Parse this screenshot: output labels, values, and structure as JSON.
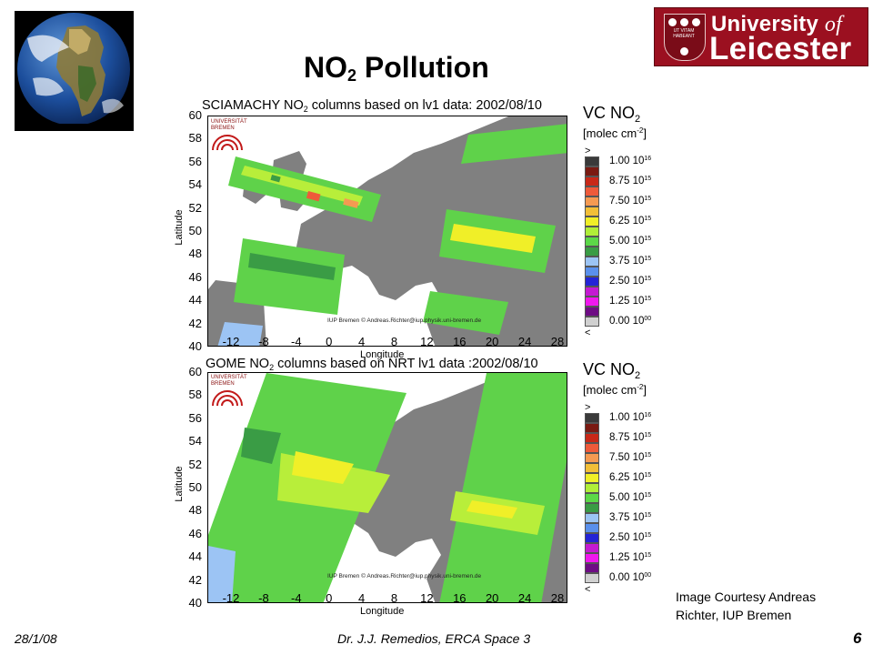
{
  "slide": {
    "title_base": "NO",
    "title_sub": "2",
    "title_tail": " Pollution",
    "page_number": "6"
  },
  "logo": {
    "line1_a": "University ",
    "line1_b": "of",
    "line2": "Leicester",
    "motto": "UT VITAM HABEANT"
  },
  "maps": [
    {
      "title_a": "SCIAMACHY NO",
      "title_sub": "2",
      "title_b": " columns based on lv1 data: 2002/08/10",
      "credit": "IUP Bremen © Andreas.Richter@iup.physik.uni-bremen.de",
      "y_ticks": [
        "60",
        "58",
        "56",
        "54",
        "52",
        "50",
        "48",
        "46",
        "44",
        "42",
        "40"
      ],
      "x_ticks": [
        "-12",
        "-8",
        "-4",
        "0",
        "4",
        "8",
        "12",
        "16",
        "20",
        "24",
        "28"
      ],
      "xlabel": "Longitude",
      "ylabel": "Latitude",
      "institute": [
        "UNIVERSITÄT",
        "BREMEN"
      ]
    },
    {
      "title_a": "GOME NO",
      "title_sub": "2",
      "title_b": " columns based on NRT lv1 data :2002/08/10",
      "credit": "IUP Bremen © Andreas.Richter@iup.physik.uni-bremen.de",
      "y_ticks": [
        "60",
        "58",
        "56",
        "54",
        "52",
        "50",
        "48",
        "46",
        "44",
        "42",
        "40"
      ],
      "x_ticks": [
        "-12",
        "-8",
        "-4",
        "0",
        "4",
        "8",
        "12",
        "16",
        "20",
        "24",
        "28"
      ],
      "xlabel": "Longitude",
      "ylabel": "Latitude",
      "institute": [
        "UNIVERSITÄT",
        "BREMEN"
      ]
    }
  ],
  "legend": {
    "title_a": "VC NO",
    "title_sub": "2",
    "unit_a": "[molec cm",
    "unit_sup": "-2",
    "unit_b": "]",
    "top_symbol": ">",
    "bottom_symbol": "<",
    "labels": [
      {
        "m": "1.00 10",
        "e": "16"
      },
      {
        "m": "8.75 10",
        "e": "15"
      },
      {
        "m": "7.50 10",
        "e": "15"
      },
      {
        "m": "6.25 10",
        "e": "15"
      },
      {
        "m": "5.00 10",
        "e": "15"
      },
      {
        "m": "3.75 10",
        "e": "15"
      },
      {
        "m": "2.50 10",
        "e": "15"
      },
      {
        "m": "1.25 10",
        "e": "15"
      },
      {
        "m": "0.00 10",
        "e": "00"
      }
    ],
    "colors": [
      "#3a3a3a",
      "#7a1a12",
      "#c82818",
      "#ee5a3a",
      "#f59a52",
      "#f2bf38",
      "#f0ef28",
      "#b0ee38",
      "#5cd848",
      "#3a9c45",
      "#9cc4f4",
      "#5a90ec",
      "#2424d6",
      "#c41ad2",
      "#f018ee",
      "#6e0c84",
      "#d0d0d0"
    ]
  },
  "courtesy": {
    "line1": "Image Courtesy Andreas",
    "line2": "Richter, IUP Bremen"
  },
  "footer": {
    "date": "28/1/08",
    "center": "Dr. J.J. Remedios, ERCA Space 3"
  }
}
